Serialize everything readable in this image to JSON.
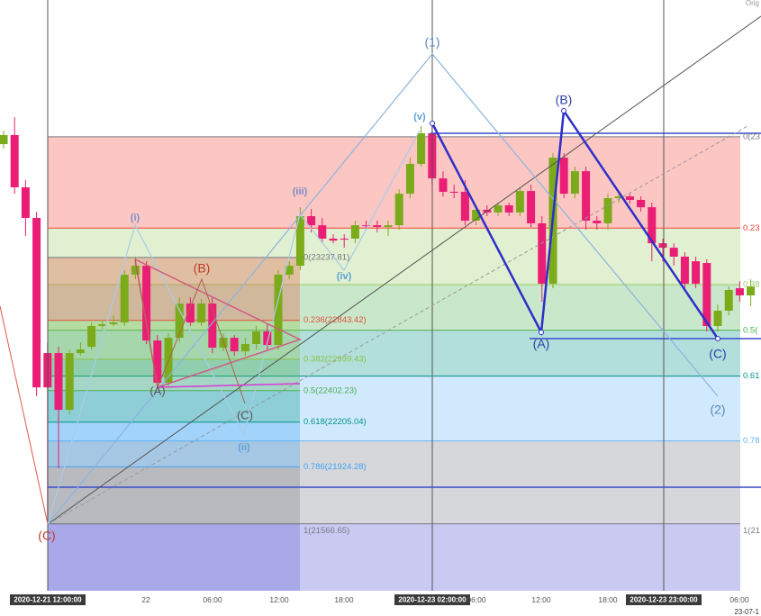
{
  "chart_data": {
    "type": "candlestick",
    "corner_label": "Orig",
    "date_stamp": "23-07-1",
    "ylim": [
      21147,
      24853
    ],
    "up_color": "#7bab1a",
    "down_color": "#e91e74",
    "ohlc": [
      [
        23949,
        24034,
        23921,
        24006
      ],
      [
        24006,
        24118,
        23638,
        23678
      ],
      [
        23678,
        23723,
        23373,
        23486
      ],
      [
        23486,
        23525,
        22367,
        22423
      ],
      [
        22638,
        22706,
        21567,
        22423
      ],
      [
        22638,
        22678,
        21915,
        22282
      ],
      [
        22282,
        22661,
        22254,
        22638
      ],
      [
        22638,
        22706,
        22621,
        22661
      ],
      [
        22678,
        22830,
        22661,
        22808
      ],
      [
        22808,
        22847,
        22791,
        22819
      ],
      [
        22819,
        22875,
        22808,
        22830
      ],
      [
        22830,
        23158,
        22808,
        23130
      ],
      [
        23130,
        23243,
        23101,
        23186
      ],
      [
        23186,
        23214,
        22695,
        22717
      ],
      [
        22717,
        22751,
        22423,
        22452
      ],
      [
        22452,
        22762,
        22423,
        22734
      ],
      [
        22734,
        22988,
        22706,
        22949
      ],
      [
        22949,
        22988,
        22808,
        22830
      ],
      [
        22830,
        22977,
        22808,
        22949
      ],
      [
        22949,
        22988,
        22638,
        22672
      ],
      [
        22672,
        22762,
        22649,
        22734
      ],
      [
        22734,
        22751,
        22621,
        22649
      ],
      [
        22649,
        22734,
        22621,
        22695
      ],
      [
        22695,
        22808,
        22661,
        22774
      ],
      [
        22774,
        22819,
        22661,
        22689
      ],
      [
        22689,
        23158,
        22661,
        23130
      ],
      [
        23130,
        23214,
        23101,
        23186
      ],
      [
        23186,
        23553,
        23158,
        23497
      ],
      [
        23497,
        23542,
        23395,
        23440
      ],
      [
        23440,
        23486,
        23327,
        23356
      ],
      [
        23356,
        23384,
        23327,
        23344
      ],
      [
        23356,
        23384,
        23299,
        23350
      ],
      [
        23356,
        23469,
        23327,
        23440
      ],
      [
        23440,
        23469,
        23412,
        23435
      ],
      [
        23440,
        23469,
        23395,
        23429
      ],
      [
        23429,
        23469,
        23373,
        23440
      ],
      [
        23440,
        23666,
        23412,
        23638
      ],
      [
        23638,
        23864,
        23610,
        23825
      ],
      [
        23825,
        24062,
        23808,
        24017
      ],
      [
        24017,
        24073,
        23695,
        23734
      ],
      [
        23734,
        23779,
        23621,
        23650
      ],
      [
        23650,
        23695,
        23610,
        23644
      ],
      [
        23650,
        23723,
        23440,
        23469
      ],
      [
        23469,
        23565,
        23440,
        23537
      ],
      [
        23537,
        23565,
        23497,
        23520
      ],
      [
        23520,
        23582,
        23497,
        23565
      ],
      [
        23565,
        23582,
        23497,
        23520
      ],
      [
        23520,
        23678,
        23497,
        23655
      ],
      [
        23655,
        23695,
        23429,
        23452
      ],
      [
        23452,
        23497,
        22960,
        23073
      ],
      [
        23073,
        23892,
        23045,
        23864
      ],
      [
        23864,
        23892,
        23610,
        23638
      ],
      [
        23638,
        23808,
        23610,
        23779
      ],
      [
        23779,
        23808,
        23412,
        23469
      ],
      [
        23469,
        23497,
        23412,
        23452
      ],
      [
        23452,
        23638,
        23412,
        23610
      ],
      [
        23610,
        23638,
        23582,
        23621
      ],
      [
        23621,
        23638,
        23576,
        23599
      ],
      [
        23599,
        23621,
        23525,
        23553
      ],
      [
        23553,
        23582,
        23214,
        23327
      ],
      [
        23327,
        23356,
        23214,
        23299
      ],
      [
        23299,
        23327,
        23186,
        23243
      ],
      [
        23243,
        23271,
        23045,
        23073
      ],
      [
        23214,
        23243,
        23045,
        23073
      ],
      [
        23203,
        23226,
        22774,
        22808
      ],
      [
        22808,
        22943,
        22774,
        22904
      ],
      [
        22904,
        23056,
        22875,
        23034
      ],
      [
        23045,
        23090,
        22960,
        23000
      ],
      [
        23000,
        23101,
        22932,
        23056
      ]
    ],
    "xticks": [
      "2020-12-21 12:00:00",
      "22",
      "06:00",
      "12:00",
      "18:00",
      "2020-12-23 02:00:00",
      "06:00",
      "12:00",
      "18:00",
      "2020-12-23 23:00:00",
      "06:00"
    ],
    "fib_right": {
      "levels": [
        {
          "price": 23995,
          "label": "0(23",
          "color": "#787b86"
        },
        {
          "price": 23422,
          "label": "0.23",
          "color": "#f44336"
        },
        {
          "price": 23068,
          "label": "0.38",
          "color": "#9ccc65"
        },
        {
          "price": 22781,
          "label": "0.5(",
          "color": "#4caf50"
        },
        {
          "price": 22494,
          "label": "0.61",
          "color": "#009688"
        },
        {
          "price": 22087,
          "label": "0.78",
          "color": "#64b5f6"
        },
        {
          "price": 21567,
          "label": "1(21",
          "color": "#787b86"
        }
      ]
    },
    "fib_left": {
      "levels": [
        {
          "price": 23237.81,
          "label": "0(23237.81)",
          "color": "#787b86"
        },
        {
          "price": 22843.42,
          "label": "0.236(22843.42)",
          "color": "#e0533f"
        },
        {
          "price": 22599.43,
          "label": "0.382(22599.43)",
          "color": "#8bc34a"
        },
        {
          "price": 22402.23,
          "label": "0.5(22402.23)",
          "color": "#4caf50"
        },
        {
          "price": 22205.04,
          "label": "0.618(22205.04)",
          "color": "#009688"
        },
        {
          "price": 21924.28,
          "label": "0.786(21924.28)",
          "color": "#42a5f5"
        },
        {
          "price": 21566.65,
          "label": "1(21566.65)",
          "color": "#787b86"
        }
      ]
    },
    "wave_labels": [
      {
        "text": "(1)",
        "color": "#5b84b8"
      },
      {
        "text": "(2)",
        "color": "#5b84b8"
      },
      {
        "text": "(A)",
        "color": "#2b3fa8"
      },
      {
        "text": "(B)",
        "color": "#2b3fa8"
      },
      {
        "text": "(C)",
        "color": "#2b3fa8"
      },
      {
        "text": "(i)",
        "color": "#7a8fc8"
      },
      {
        "text": "(ii)",
        "color": "#5fa0d8"
      },
      {
        "text": "(iii)",
        "color": "#7a8ac8"
      },
      {
        "text": "(iv)",
        "color": "#5fa0d8"
      },
      {
        "text": "(v)",
        "color": "#5fa0d8"
      },
      {
        "text": "(C)",
        "color": "#c0392b"
      },
      {
        "text": "(A)",
        "color": "#555555"
      },
      {
        "text": "(B)",
        "color": "#c0392b"
      },
      {
        "text": "(C)",
        "color": "#555555"
      }
    ]
  }
}
